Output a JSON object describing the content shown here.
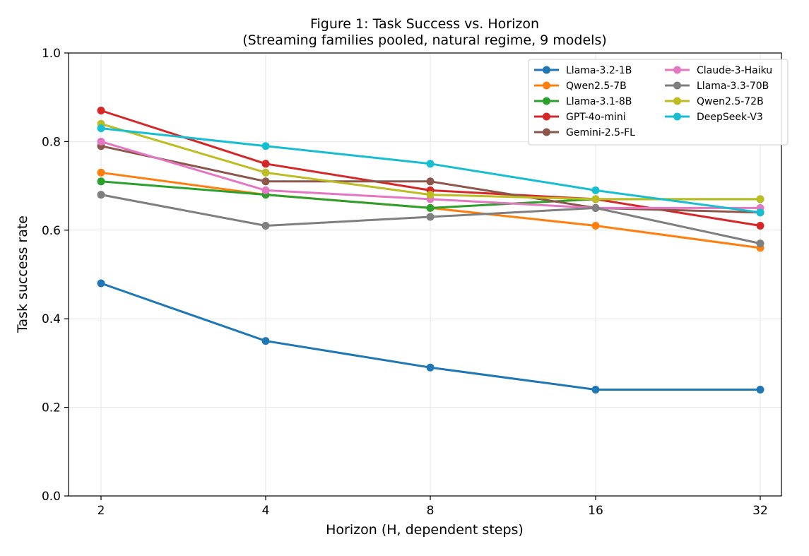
{
  "chart_data": {
    "type": "line",
    "title": "Figure 1: Task Success vs. Horizon",
    "subtitle": "(Streaming families pooled, natural regime, 9 models)",
    "xlabel": "Horizon (H, dependent steps)",
    "ylabel": "Task success rate",
    "x": [
      "2",
      "4",
      "8",
      "16",
      "32"
    ],
    "x_scale": "log2",
    "ylim": [
      0.0,
      1.0
    ],
    "yticks": [
      "0.0",
      "0.2",
      "0.4",
      "0.6",
      "0.8",
      "1.0"
    ],
    "grid": true,
    "legend_position": "top-right",
    "series": [
      {
        "name": "Llama-3.2-1B",
        "color": "#1f77b4",
        "values": [
          0.48,
          0.35,
          0.29,
          0.24,
          0.24
        ]
      },
      {
        "name": "Qwen2.5-7B",
        "color": "#ff7f0e",
        "values": [
          0.73,
          0.68,
          0.65,
          0.61,
          0.56
        ]
      },
      {
        "name": "Llama-3.1-8B",
        "color": "#2ca02c",
        "values": [
          0.71,
          0.68,
          0.65,
          0.67,
          0.67
        ]
      },
      {
        "name": "GPT-4o-mini",
        "color": "#d62728",
        "values": [
          0.87,
          0.75,
          0.69,
          0.67,
          0.61
        ]
      },
      {
        "name": "Gemini-2.5-FL",
        "color": "#8c564b",
        "values": [
          0.79,
          0.71,
          0.71,
          0.65,
          0.64
        ]
      },
      {
        "name": "Claude-3-Haiku",
        "color": "#e377c2",
        "values": [
          0.8,
          0.69,
          0.67,
          0.65,
          0.65
        ]
      },
      {
        "name": "Llama-3.3-70B",
        "color": "#7f7f7f",
        "values": [
          0.68,
          0.61,
          0.63,
          0.65,
          0.57
        ]
      },
      {
        "name": "Qwen2.5-72B",
        "color": "#bcbd22",
        "values": [
          0.84,
          0.73,
          0.68,
          0.67,
          0.67
        ]
      },
      {
        "name": "DeepSeek-V3",
        "color": "#17becf",
        "values": [
          0.83,
          0.79,
          0.75,
          0.69,
          0.64
        ]
      }
    ]
  }
}
